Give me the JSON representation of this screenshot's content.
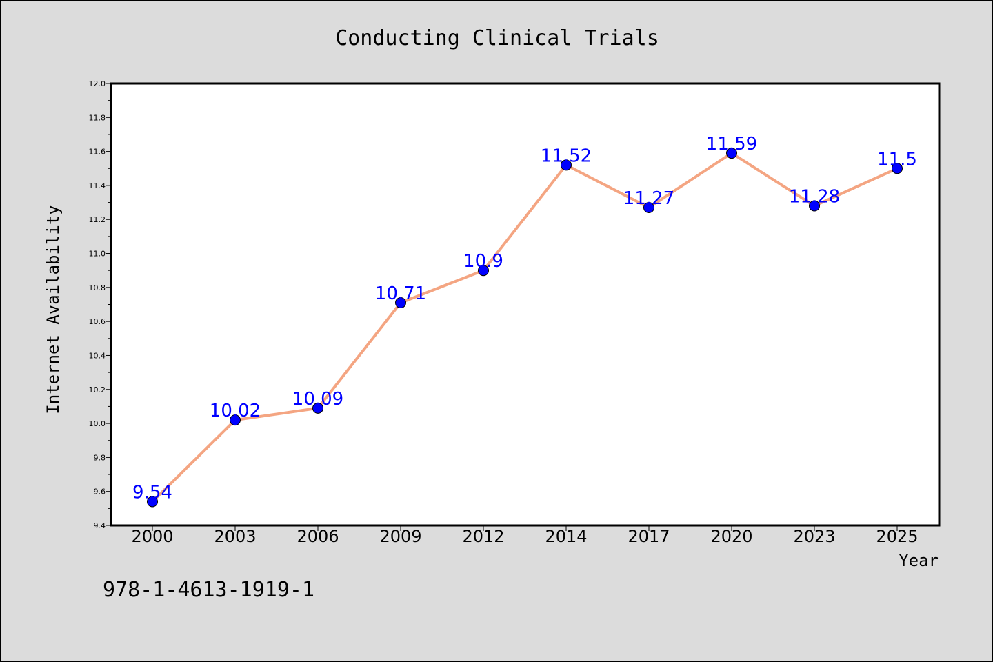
{
  "chart_data": {
    "type": "line",
    "title": "Conducting Clinical Trials",
    "xlabel": "Year",
    "ylabel": "Internet Availability",
    "categories": [
      "2000",
      "2003",
      "2006",
      "2009",
      "2012",
      "2014",
      "2017",
      "2020",
      "2023",
      "2025"
    ],
    "series": [
      {
        "values": [
          9.54,
          10.02,
          10.09,
          10.71,
          10.9,
          11.52,
          11.27,
          11.59,
          11.28,
          11.5
        ],
        "data_labels": [
          "9.54",
          "10.02",
          "10.09",
          "10.71",
          "10.9",
          "11.52",
          "11.27",
          "11.59",
          "11.28",
          "11.5"
        ],
        "line_color": "#f4a582",
        "marker_color": "#0000ff"
      }
    ],
    "ylim": [
      9.4,
      12.0
    ],
    "yticks": [
      "9.4",
      "9.6",
      "9.8",
      "10.0",
      "10.2",
      "10.4",
      "10.6",
      "10.8",
      "11.0",
      "11.2",
      "11.4",
      "11.6",
      "11.8",
      "12.0"
    ],
    "grid": false,
    "legend": "none",
    "label_color": "#0000ff",
    "background_color": "#dcdcdc",
    "plot_background": "#ffffff"
  },
  "footer": {
    "isbn": "978-1-4613-1919-1"
  }
}
